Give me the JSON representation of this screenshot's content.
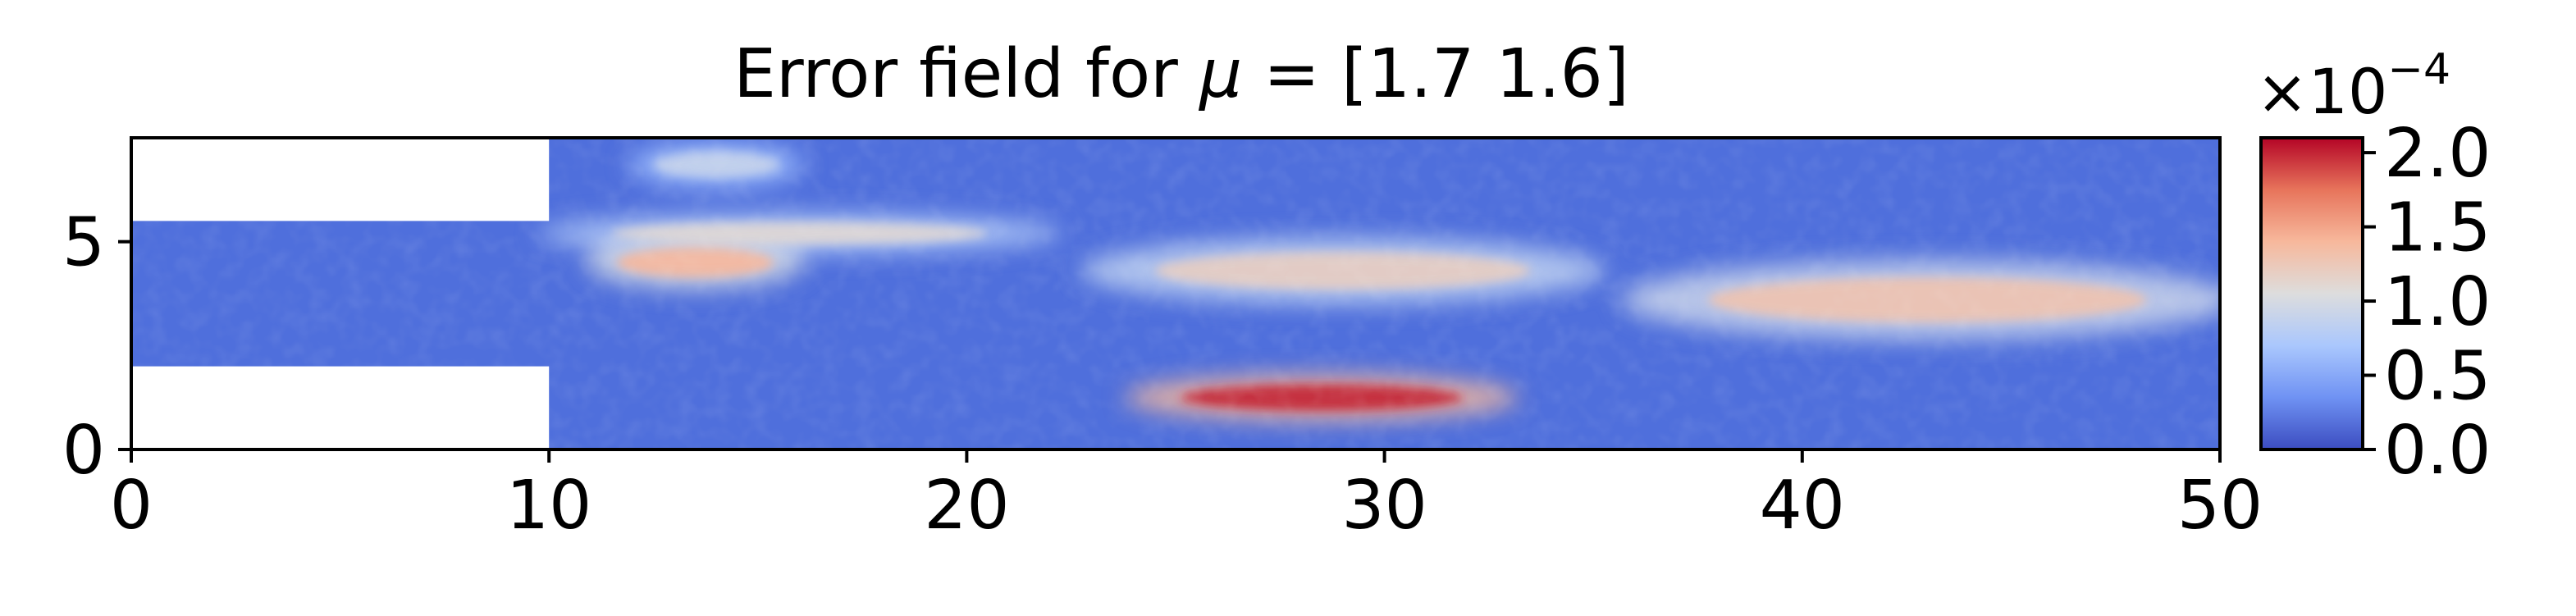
{
  "chart_data": {
    "type": "heatmap",
    "title_prefix": "Error field for ",
    "title_symbol": "μ",
    "title_suffix": " = [1.7 1.6]",
    "xlim": [
      0,
      50
    ],
    "ylim": [
      0,
      7.5
    ],
    "x_ticks": [
      {
        "value": 0,
        "label": "0"
      },
      {
        "value": 10,
        "label": "10"
      },
      {
        "value": 20,
        "label": "20"
      },
      {
        "value": 30,
        "label": "30"
      },
      {
        "value": 40,
        "label": "40"
      },
      {
        "value": 50,
        "label": "50"
      }
    ],
    "y_ticks": [
      {
        "value": 0,
        "label": "0"
      },
      {
        "value": 5,
        "label": "5"
      }
    ],
    "domain": {
      "inlet_x": [
        0,
        10
      ],
      "inlet_y": [
        2,
        5.5
      ],
      "channel_x": [
        10,
        50
      ],
      "channel_y": [
        0,
        7.5
      ]
    },
    "colormap": "coolwarm",
    "colormap_stops": [
      "#3b4cc0",
      "#6f92f3",
      "#aac7fd",
      "#dddddd",
      "#f7b89c",
      "#e7745b",
      "#b40426"
    ],
    "colorbar": {
      "range": [
        0,
        2.1
      ],
      "multiplier": "×10",
      "exponent": "−4",
      "ticks": [
        {
          "value": 0.0,
          "label": "0.0"
        },
        {
          "value": 0.5,
          "label": "0.5"
        },
        {
          "value": 1.0,
          "label": "1.0"
        },
        {
          "value": 1.5,
          "label": "1.5"
        },
        {
          "value": 2.0,
          "label": "2.0"
        }
      ]
    },
    "field_features": [
      {
        "x": [
          10,
          22
        ],
        "y": [
          4.9,
          5.5
        ],
        "level": 1.1,
        "note": "upper-left jet band"
      },
      {
        "x": [
          11,
          16
        ],
        "y": [
          4.1,
          4.9
        ],
        "level": 1.4,
        "note": "hotspot near inlet"
      },
      {
        "x": [
          23,
          35
        ],
        "y": [
          3.8,
          4.8
        ],
        "level": 1.2,
        "note": "central band"
      },
      {
        "x": [
          24,
          33
        ],
        "y": [
          0.9,
          1.6
        ],
        "level": 2.0,
        "note": "peak error region"
      },
      {
        "x": [
          36,
          50
        ],
        "y": [
          3.0,
          4.2
        ],
        "level": 1.3,
        "note": "downstream band"
      },
      {
        "x": [
          12,
          16
        ],
        "y": [
          6.5,
          7.2
        ],
        "level": 0.9,
        "note": "top layer"
      }
    ]
  }
}
